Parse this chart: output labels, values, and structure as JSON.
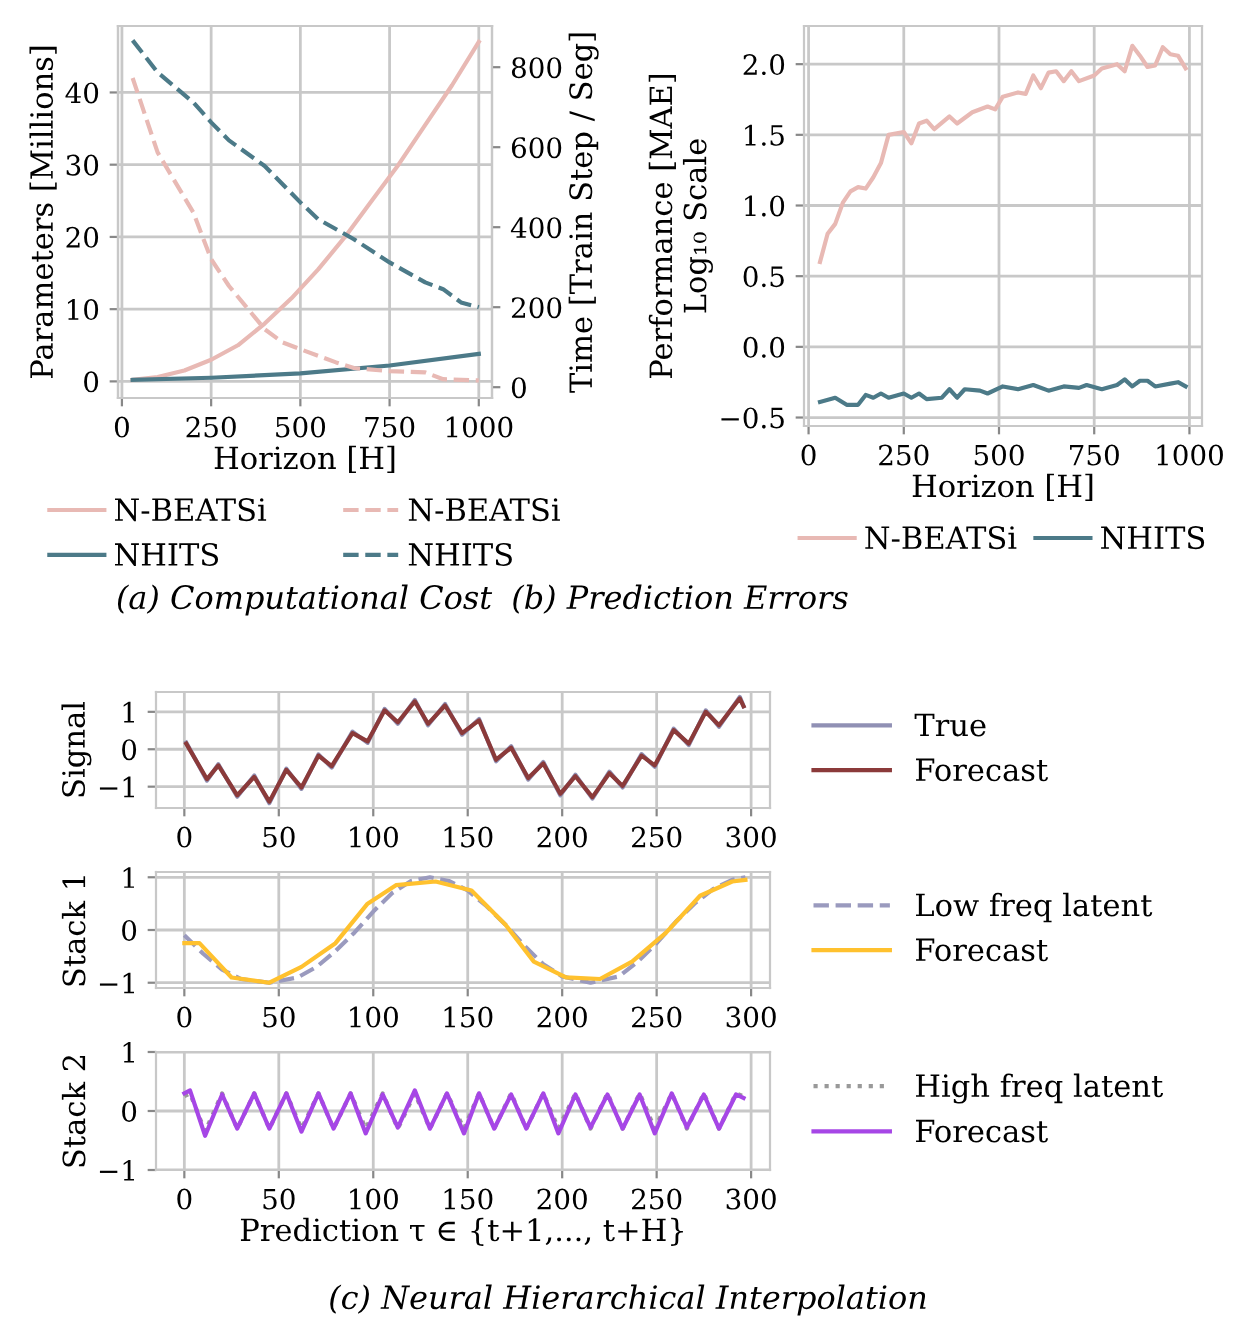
{
  "chart_data": [
    {
      "type": "line",
      "xlabel": "Horizon [H]",
      "ylabel": "Parameters [Millions]",
      "y2label": "Time [Train Step / Seg]",
      "xlim": [
        -11,
        1037
      ],
      "xticks": [
        0,
        250,
        500,
        750,
        1000
      ],
      "ylim": [
        -2.3,
        49.2
      ],
      "yticks": [
        0,
        10,
        20,
        30,
        40
      ],
      "y2lim": [
        -27,
        903
      ],
      "y2ticks": [
        0,
        200,
        400,
        600,
        800
      ],
      "grid": true,
      "legend": "bottom",
      "annotations": [
        "(a) Computational Cost"
      ],
      "series": [
        {
          "name": "N-BEATSi",
          "color": "#e8b9b4",
          "line_style": "solid",
          "x": [
            30,
            100,
            175,
            250,
            325,
            400,
            475,
            550,
            625,
            700,
            775,
            850,
            925,
            1000
          ],
          "values": [
            0.2,
            0.6,
            1.5,
            3,
            5,
            8,
            11.5,
            15.5,
            20,
            25,
            30,
            35.5,
            41,
            47
          ]
        },
        {
          "name": "NHITS",
          "color": "#4c7a88",
          "line_style": "solid",
          "x": [
            30,
            250,
            500,
            750,
            1000
          ],
          "values": [
            0.2,
            0.5,
            1.1,
            2.2,
            3.8
          ]
        },
        {
          "name": "N-BEATSi",
          "color": "#e8b9b4",
          "line_style": "dashed",
          "axis": "y2",
          "x": [
            30,
            100,
            200,
            250,
            300,
            400,
            450,
            500,
            600,
            650,
            750,
            850,
            900,
            1000
          ],
          "values": [
            773,
            587,
            437,
            320,
            253,
            145,
            112,
            95,
            62,
            48,
            40,
            37,
            20,
            17
          ]
        },
        {
          "name": "NHITS",
          "color": "#4c7a88",
          "line_style": "dashed",
          "axis": "y2",
          "x": [
            30,
            100,
            200,
            250,
            300,
            400,
            500,
            550,
            650,
            750,
            850,
            900,
            950,
            1000
          ],
          "values": [
            867,
            787,
            712,
            662,
            617,
            553,
            462,
            420,
            370,
            312,
            262,
            245,
            212,
            200
          ]
        }
      ]
    },
    {
      "type": "line",
      "xlabel": "Horizon [H]",
      "ylabel": "Performance [MAE]\nLog₁₀ Scale",
      "xlim": [
        -12,
        1033
      ],
      "xticks": [
        0,
        250,
        500,
        750,
        1000
      ],
      "ylim": [
        -0.56,
        2.27
      ],
      "yticks": [
        {
          "value": -0.5,
          "label": "−0.5"
        },
        {
          "value": 0,
          "label": "0.0"
        },
        0.5,
        {
          "value": 1,
          "label": "1.0"
        },
        1.5,
        {
          "value": 2,
          "label": "2.0"
        }
      ],
      "grid": true,
      "legend": "bottom",
      "annotations": [
        "(b) Prediction Errors"
      ],
      "series": [
        {
          "name": "N-BEATSi",
          "color": "#e8b9b4",
          "x": [
            30,
            50,
            70,
            90,
            110,
            130,
            150,
            170,
            190,
            210,
            250,
            270,
            290,
            310,
            330,
            370,
            390,
            430,
            470,
            490,
            510,
            550,
            570,
            590,
            610,
            630,
            650,
            670,
            690,
            710,
            750,
            770,
            810,
            830,
            850,
            870,
            890,
            910,
            930,
            950,
            970,
            990
          ],
          "values": [
            0.6,
            0.8,
            0.87,
            1.02,
            1.1,
            1.13,
            1.12,
            1.2,
            1.3,
            1.5,
            1.52,
            1.44,
            1.58,
            1.6,
            1.54,
            1.63,
            1.58,
            1.66,
            1.7,
            1.68,
            1.77,
            1.8,
            1.79,
            1.92,
            1.83,
            1.94,
            1.95,
            1.88,
            1.95,
            1.88,
            1.92,
            1.97,
            2.0,
            1.95,
            2.13,
            2.06,
            1.98,
            1.99,
            2.12,
            2.07,
            2.06,
            1.97
          ]
        },
        {
          "name": "NHITS",
          "color": "#4c7a88",
          "x": [
            30,
            70,
            100,
            130,
            150,
            170,
            190,
            210,
            250,
            270,
            290,
            310,
            350,
            370,
            390,
            410,
            450,
            470,
            510,
            550,
            590,
            630,
            670,
            710,
            730,
            770,
            810,
            830,
            850,
            870,
            890,
            910,
            950,
            970,
            990
          ],
          "values": [
            -0.39,
            -0.36,
            -0.41,
            -0.41,
            -0.34,
            -0.36,
            -0.33,
            -0.36,
            -0.33,
            -0.36,
            -0.33,
            -0.37,
            -0.36,
            -0.3,
            -0.36,
            -0.3,
            -0.31,
            -0.33,
            -0.28,
            -0.3,
            -0.27,
            -0.31,
            -0.28,
            -0.29,
            -0.27,
            -0.3,
            -0.27,
            -0.23,
            -0.28,
            -0.24,
            -0.24,
            -0.28,
            -0.26,
            -0.25,
            -0.28
          ]
        }
      ]
    },
    {
      "type": "line",
      "ylabel": "Signal",
      "xlim": [
        -15,
        310
      ],
      "xticks": [
        0,
        50,
        100,
        150,
        200,
        250,
        300
      ],
      "ylim": [
        -1.57,
        1.53
      ],
      "yticks": [
        {
          "value": -1,
          "label": "−1"
        },
        0,
        1
      ],
      "grid": true,
      "legend": "right",
      "series": [
        {
          "name": "True",
          "color": "#9090b4",
          "x": [
            1,
            12,
            18,
            28,
            37,
            45,
            54,
            62,
            71,
            78,
            89,
            97,
            106,
            113,
            122,
            129,
            138,
            147,
            156,
            165,
            173,
            182,
            190,
            199,
            207,
            216,
            225,
            232,
            242,
            249,
            259,
            267,
            276,
            283,
            294,
            296
          ],
          "values": [
            0.18,
            -0.84,
            -0.4,
            -1.27,
            -0.7,
            -1.44,
            -0.52,
            -1.06,
            -0.14,
            -0.49,
            0.47,
            0.17,
            1.08,
            0.68,
            1.32,
            0.64,
            1.21,
            0.39,
            0.81,
            -0.32,
            0.08,
            -0.81,
            -0.34,
            -1.23,
            -0.68,
            -1.32,
            -0.6,
            -1.02,
            -0.13,
            -0.47,
            0.55,
            0.11,
            1.04,
            0.6,
            1.4,
            1.15
          ]
        },
        {
          "name": "Forecast",
          "color": "#8b3a3a",
          "x": [
            1,
            12,
            18,
            28,
            37,
            45,
            54,
            62,
            71,
            78,
            89,
            97,
            106,
            113,
            122,
            129,
            138,
            147,
            156,
            165,
            173,
            182,
            190,
            199,
            207,
            216,
            225,
            232,
            242,
            249,
            259,
            267,
            276,
            283,
            294,
            296
          ],
          "values": [
            0.15,
            -0.8,
            -0.43,
            -1.23,
            -0.74,
            -1.4,
            -0.55,
            -1.02,
            -0.17,
            -0.45,
            0.43,
            0.21,
            1.04,
            0.72,
            1.28,
            0.68,
            1.17,
            0.43,
            0.77,
            -0.28,
            0.04,
            -0.77,
            -0.38,
            -1.19,
            -0.72,
            -1.28,
            -0.64,
            -0.98,
            -0.17,
            -0.43,
            0.51,
            0.15,
            1.0,
            0.64,
            1.36,
            1.15
          ]
        }
      ]
    },
    {
      "type": "line",
      "ylabel": "Stack 1",
      "xlim": [
        -15,
        310
      ],
      "xticks": [
        0,
        50,
        100,
        150,
        200,
        250,
        300
      ],
      "ylim": [
        -1.1,
        1.1
      ],
      "yticks": [
        {
          "value": -1,
          "label": "−1"
        },
        0,
        1
      ],
      "grid": true,
      "legend": "right",
      "series": [
        {
          "name": "Low freq latent",
          "color": "#9a9abe",
          "line_style": "dashed",
          "x": [
            0,
            10,
            20,
            30,
            45,
            60,
            70,
            80,
            90,
            100,
            110,
            120,
            130,
            140,
            150,
            160,
            170,
            180,
            190,
            200,
            215,
            230,
            240,
            250,
            260,
            270,
            280,
            290,
            297
          ],
          "values": [
            -0.1,
            -0.45,
            -0.75,
            -0.93,
            -1.0,
            -0.9,
            -0.7,
            -0.4,
            -0.05,
            0.35,
            0.7,
            0.93,
            1.0,
            0.93,
            0.75,
            0.45,
            0.1,
            -0.3,
            -0.65,
            -0.88,
            -1.0,
            -0.88,
            -0.6,
            -0.25,
            0.15,
            0.5,
            0.78,
            0.95,
            1.0
          ]
        },
        {
          "name": "Forecast",
          "color": "#ffc12e",
          "x": [
            0,
            8,
            25,
            45,
            62,
            80,
            97,
            112,
            133,
            152,
            170,
            185,
            202,
            220,
            237,
            255,
            273,
            290,
            297
          ],
          "values": [
            -0.25,
            -0.25,
            -0.9,
            -1.0,
            -0.7,
            -0.25,
            0.5,
            0.85,
            0.92,
            0.75,
            0.1,
            -0.6,
            -0.9,
            -0.93,
            -0.6,
            -0.05,
            0.65,
            0.92,
            0.95
          ]
        }
      ]
    },
    {
      "type": "line",
      "ylabel": "Stack 2",
      "xlabel": "Prediction τ ∈ {t+1,..., t+H}",
      "xlim": [
        -15,
        310
      ],
      "xticks": [
        0,
        50,
        100,
        150,
        200,
        250,
        300
      ],
      "ylim": [
        -1,
        1
      ],
      "yticks": [
        {
          "value": -1,
          "label": "−1"
        },
        0,
        1
      ],
      "grid": true,
      "legend": "right",
      "annotations": [
        "(c) Neural Hierarchical Interpolation"
      ],
      "series": [
        {
          "name": "High freq latent",
          "color": "#999999",
          "line_style": "dotted",
          "x": [
            0,
            3,
            11,
            20,
            28,
            37,
            45,
            54,
            62,
            71,
            79,
            88,
            96,
            105,
            113,
            122,
            130,
            139,
            148,
            156,
            164,
            173,
            181,
            190,
            198,
            207,
            215,
            224,
            232,
            241,
            249,
            258,
            266,
            275,
            283,
            292,
            296
          ],
          "values": [
            0.25,
            0.3,
            -0.35,
            0.3,
            -0.3,
            0.3,
            -0.3,
            0.3,
            -0.3,
            0.3,
            -0.3,
            0.3,
            -0.3,
            0.3,
            -0.3,
            0.3,
            -0.3,
            0.3,
            -0.3,
            0.3,
            -0.3,
            0.3,
            -0.3,
            0.3,
            -0.3,
            0.3,
            -0.3,
            0.3,
            -0.3,
            0.3,
            -0.3,
            0.3,
            -0.3,
            0.3,
            -0.3,
            0.3,
            0.25
          ]
        },
        {
          "name": "Forecast",
          "color": "#a646e6",
          "x": [
            0,
            3,
            11,
            20,
            28,
            37,
            45,
            54,
            62,
            71,
            79,
            88,
            96,
            105,
            113,
            122,
            130,
            139,
            148,
            156,
            164,
            173,
            181,
            190,
            198,
            207,
            215,
            224,
            232,
            241,
            249,
            258,
            266,
            275,
            283,
            292,
            296
          ],
          "values": [
            0.3,
            0.35,
            -0.42,
            0.28,
            -0.3,
            0.3,
            -0.3,
            0.3,
            -0.35,
            0.3,
            -0.3,
            0.3,
            -0.38,
            0.28,
            -0.28,
            0.35,
            -0.3,
            0.3,
            -0.38,
            0.3,
            -0.3,
            0.28,
            -0.3,
            0.3,
            -0.38,
            0.28,
            -0.28,
            0.28,
            -0.3,
            0.28,
            -0.38,
            0.3,
            -0.28,
            0.28,
            -0.3,
            0.28,
            0.22
          ]
        }
      ]
    }
  ]
}
